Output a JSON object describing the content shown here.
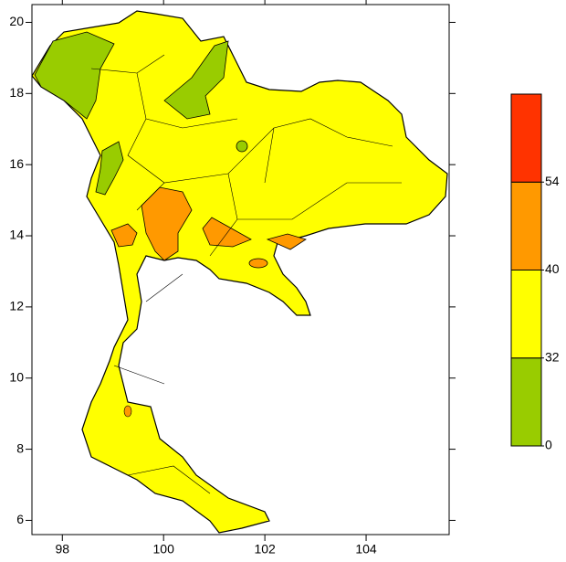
{
  "map": {
    "xlim": [
      97.4,
      105.64
    ],
    "ylim": [
      5.6,
      20.5
    ],
    "xticks": [
      98,
      100,
      102,
      104
    ],
    "yticks": [
      6,
      8,
      10,
      12,
      14,
      16,
      18,
      20
    ],
    "colorbar": {
      "levels": [
        0,
        32,
        40,
        54
      ],
      "colors": [
        "#99cc00",
        "#ffff00",
        "#ff9900",
        "#ff3300"
      ]
    }
  }
}
